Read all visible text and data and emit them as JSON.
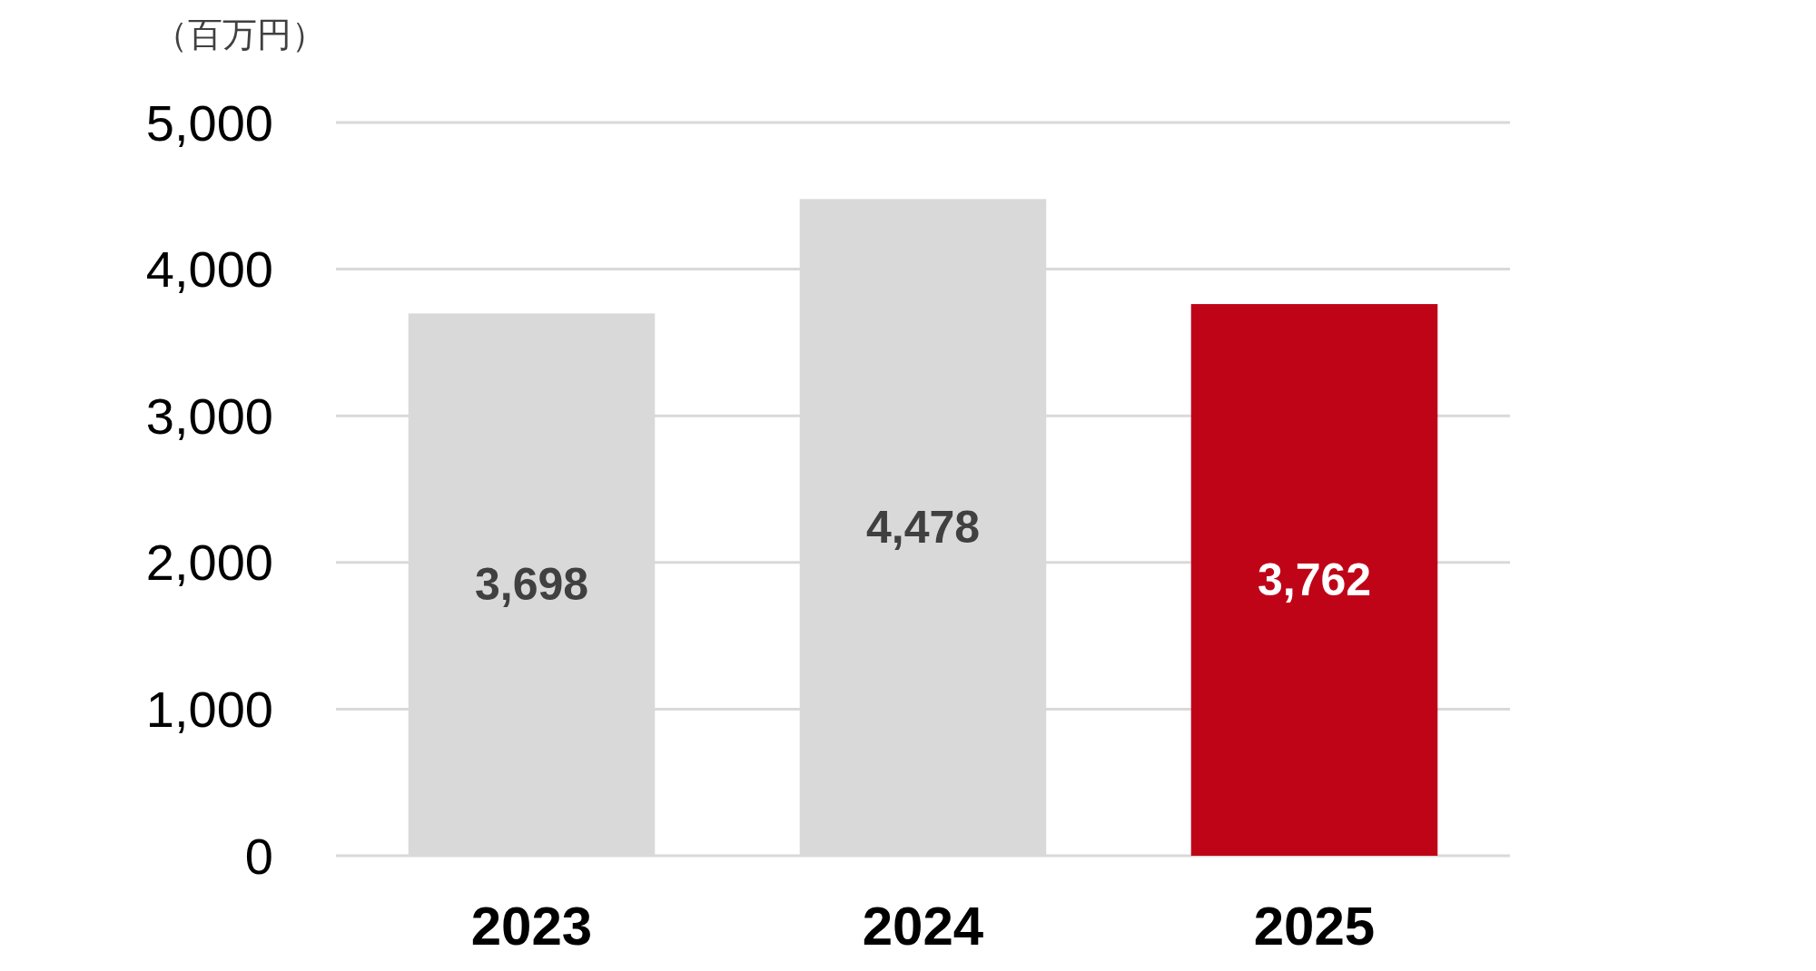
{
  "chart_data": {
    "type": "bar",
    "ylabel": "（百万円）",
    "categories": [
      "2023",
      "2024",
      "2025"
    ],
    "values": [
      3698,
      4478,
      3762
    ],
    "colors": [
      "#d9d9d9",
      "#d9d9d9",
      "#c00418"
    ],
    "value_labels": [
      "3,698",
      "4,478",
      "3,762"
    ],
    "ylim": [
      0,
      5000
    ],
    "yticks": [
      0,
      {
        "value": 1000,
        "label": "1,000"
      },
      {
        "value": 2000,
        "label": "2,000"
      },
      {
        "value": 3000,
        "label": "3,000"
      },
      {
        "value": 4000,
        "label": "4,000"
      },
      {
        "value": 5000,
        "label": "5,000"
      }
    ],
    "grid": "y"
  }
}
